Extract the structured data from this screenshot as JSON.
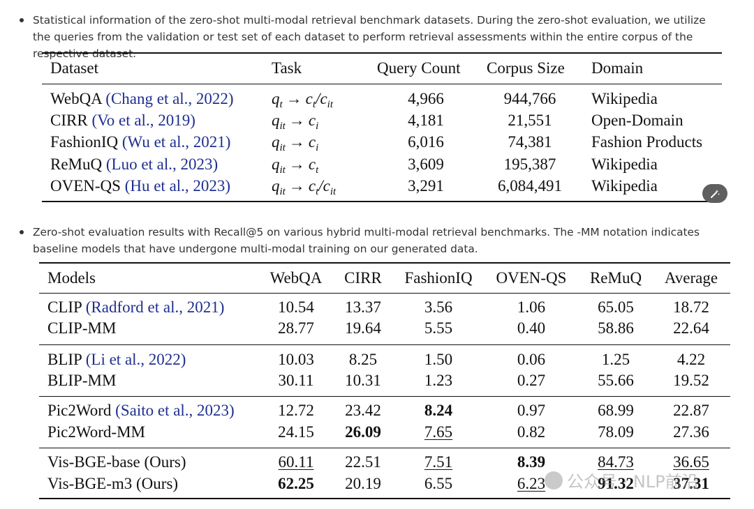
{
  "bullet1": "Statistical information of the zero-shot multi-modal retrieval benchmark datasets. During the zero-shot evaluation, we utilize the queries from the validation or test set of each dataset to perform retrieval assessments within the entire corpus of the respective dataset.",
  "table1": {
    "headers": [
      "Dataset",
      "Task",
      "Query Count",
      "Corpus Size",
      "Domain"
    ],
    "rows": [
      {
        "name": "WebQA",
        "cite": "(Chang et al., 2022)",
        "task_from": "q",
        "task_from_sub": "t",
        "task_to": "c",
        "task_to_sub": "t",
        "task_alt": "/c",
        "task_alt_sub": "it",
        "query": "4,966",
        "corpus": "944,766",
        "domain": "Wikipedia"
      },
      {
        "name": "CIRR",
        "cite": "(Vo et al., 2019)",
        "task_from": "q",
        "task_from_sub": "it",
        "task_to": "c",
        "task_to_sub": "i",
        "task_alt": "",
        "task_alt_sub": "",
        "query": "4,181",
        "corpus": "21,551",
        "domain": "Open-Domain"
      },
      {
        "name": "FashionIQ",
        "cite": "(Wu et al., 2021)",
        "task_from": "q",
        "task_from_sub": "it",
        "task_to": "c",
        "task_to_sub": "i",
        "task_alt": "",
        "task_alt_sub": "",
        "query": "6,016",
        "corpus": "74,381",
        "domain": "Fashion Products"
      },
      {
        "name": "ReMuQ",
        "cite": "(Luo et al., 2023)",
        "task_from": "q",
        "task_from_sub": "it",
        "task_to": "c",
        "task_to_sub": "t",
        "task_alt": "",
        "task_alt_sub": "",
        "query": "3,609",
        "corpus": "195,387",
        "domain": "Wikipedia"
      },
      {
        "name": "OVEN-QS",
        "cite": "(Hu et al., 2023)",
        "task_from": "q",
        "task_from_sub": "it",
        "task_to": "c",
        "task_to_sub": "t",
        "task_alt": "/c",
        "task_alt_sub": "it",
        "query": "3,291",
        "corpus": "6,084,491",
        "domain": "Wikipedia"
      }
    ]
  },
  "bullet2": "Zero-shot evaluation results with Recall@5 on various hybrid multi-modal retrieval benchmarks. The -MM notation indicates baseline models that have undergone multi-modal training on our generated data.",
  "table2": {
    "headers": [
      "Models",
      "WebQA",
      "CIRR",
      "FashionIQ",
      "OVEN-QS",
      "ReMuQ",
      "Average"
    ],
    "rows": [
      {
        "name": "CLIP",
        "cite": "(Radford et al., 2021)",
        "vals": [
          "10.54",
          "13.37",
          "3.56",
          "1.06",
          "65.05",
          "18.72"
        ],
        "bold": [],
        "under": []
      },
      {
        "name": "CLIP-MM",
        "cite": "",
        "vals": [
          "28.77",
          "19.64",
          "5.55",
          "0.40",
          "58.86",
          "22.64"
        ],
        "bold": [],
        "under": []
      },
      {
        "name": "BLIP",
        "cite": "(Li et al., 2022)",
        "vals": [
          "10.03",
          "8.25",
          "1.50",
          "0.06",
          "1.25",
          "4.22"
        ],
        "bold": [],
        "under": []
      },
      {
        "name": "BLIP-MM",
        "cite": "",
        "vals": [
          "30.11",
          "10.31",
          "1.23",
          "0.27",
          "55.66",
          "19.52"
        ],
        "bold": [],
        "under": []
      },
      {
        "name": "Pic2Word",
        "cite": "(Saito et al., 2023)",
        "vals": [
          "12.72",
          "23.42",
          "8.24",
          "0.97",
          "68.99",
          "22.87"
        ],
        "bold": [
          2
        ],
        "under": []
      },
      {
        "name": "Pic2Word-MM",
        "cite": "",
        "vals": [
          "24.15",
          "26.09",
          "7.65",
          "0.82",
          "78.09",
          "27.36"
        ],
        "bold": [
          1
        ],
        "under": [
          2
        ]
      },
      {
        "name": "Vis-BGE-base (Ours)",
        "cite": "",
        "vals": [
          "60.11",
          "22.51",
          "7.51",
          "8.39",
          "84.73",
          "36.65"
        ],
        "bold": [
          3
        ],
        "under": [
          0,
          2,
          4,
          5
        ]
      },
      {
        "name": "Vis-BGE-m3 (Ours)",
        "cite": "",
        "vals": [
          "62.25",
          "20.19",
          "6.55",
          "6.23",
          "91.32",
          "37.31"
        ],
        "bold": [
          0,
          4,
          5
        ],
        "under": [
          3
        ]
      }
    ]
  },
  "watermark": "公众号 · NLP前沿"
}
